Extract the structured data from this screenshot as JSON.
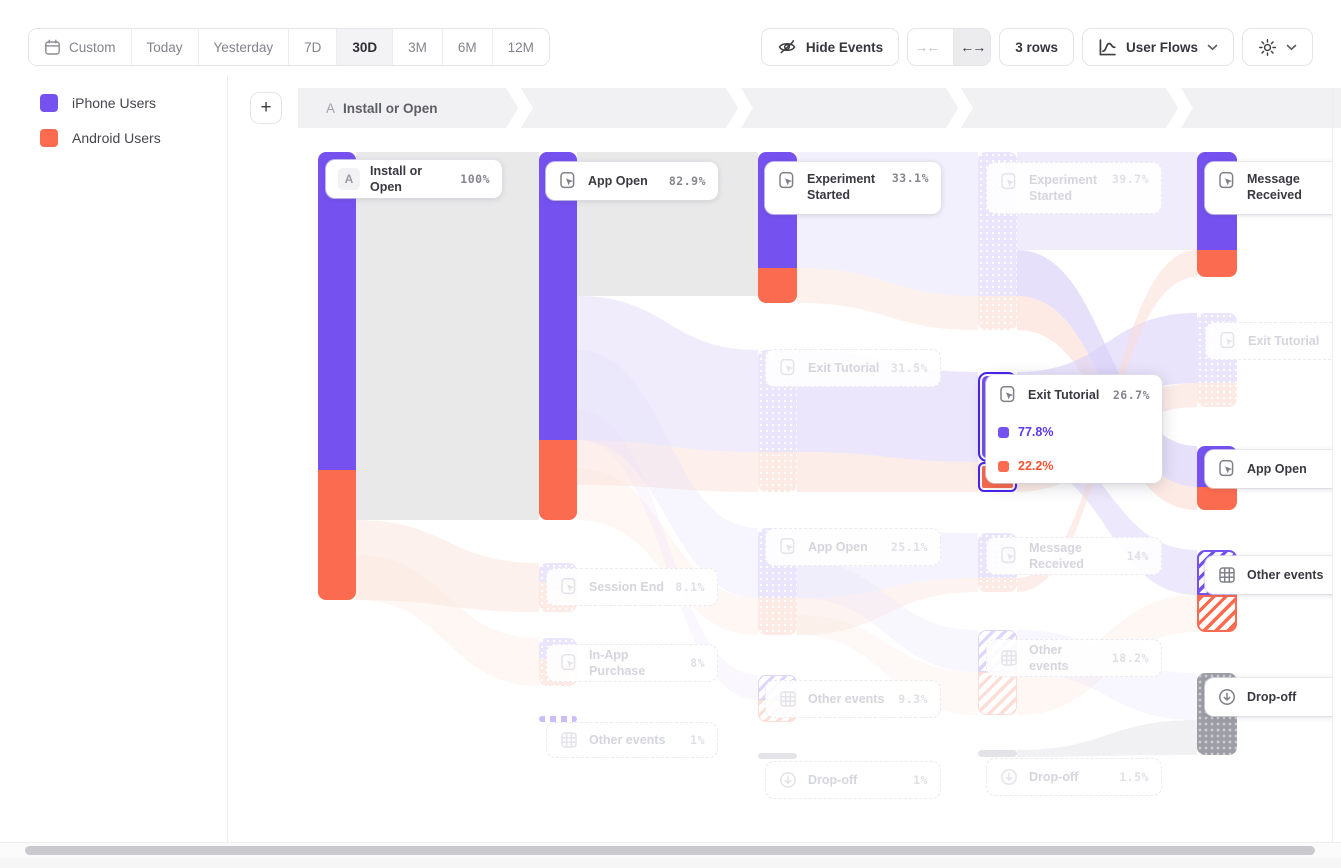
{
  "toolbar": {
    "date_buttons": [
      {
        "label": "Custom",
        "icon": "calendar",
        "selected": false
      },
      {
        "label": "Today",
        "selected": false
      },
      {
        "label": "Yesterday",
        "selected": false
      },
      {
        "label": "7D",
        "selected": false
      },
      {
        "label": "30D",
        "selected": true
      },
      {
        "label": "3M",
        "selected": false
      },
      {
        "label": "6M",
        "selected": false
      },
      {
        "label": "12M",
        "selected": false
      }
    ],
    "hide_events_label": "Hide Events",
    "rows_label": "3 rows",
    "view_selector_label": "User Flows"
  },
  "legend": {
    "items": [
      {
        "label": "iPhone Users",
        "color": "#7552f0"
      },
      {
        "label": "Android Users",
        "color": "#fb6b4f"
      }
    ]
  },
  "breadcrumb": {
    "step_letter": "A",
    "step_label": "Install or Open"
  },
  "colors": {
    "purple": "#7552f0",
    "orange": "#fb6b4f",
    "faded_purple": "#eae5fc",
    "faded_pink": "#fdeae4",
    "gray_band": "#e9e9ea",
    "dropoff_gray": "#9d9da5"
  },
  "chart_data": {
    "type": "sankey-user-flow",
    "title": "User Flows",
    "legend_series": [
      "iPhone Users",
      "Android Users"
    ],
    "columns": [
      {
        "step": 1,
        "nodes": [
          {
            "label": "Install or Open",
            "value": "100%",
            "state": "active",
            "badge": "A"
          }
        ]
      },
      {
        "step": 2,
        "nodes": [
          {
            "label": "App Open",
            "value": "82.9%",
            "state": "active",
            "icon": "event"
          },
          {
            "label": "Session End",
            "value": "8.1%",
            "state": "faded",
            "icon": "event"
          },
          {
            "label": "In-App Purchase",
            "value": "8%",
            "state": "faded",
            "icon": "event"
          },
          {
            "label": "Other events",
            "value": "1%",
            "state": "faded",
            "icon": "grid"
          }
        ]
      },
      {
        "step": 3,
        "nodes": [
          {
            "label": "Experiment Started",
            "value": "33.1%",
            "state": "active",
            "icon": "event"
          },
          {
            "label": "Exit Tutorial",
            "value": "31.5%",
            "state": "faded",
            "icon": "event"
          },
          {
            "label": "App Open",
            "value": "25.1%",
            "state": "faded",
            "icon": "event"
          },
          {
            "label": "Other events",
            "value": "9.3%",
            "state": "faded",
            "icon": "grid"
          },
          {
            "label": "Drop-off",
            "value": "1%",
            "state": "faded",
            "icon": "dropoff"
          }
        ]
      },
      {
        "step": 4,
        "nodes": [
          {
            "label": "Experiment Started",
            "value": "39.7%",
            "state": "faded",
            "icon": "event"
          },
          {
            "label": "Exit Tutorial",
            "value": "26.7%",
            "state": "hovered",
            "icon": "event",
            "breakdown": [
              {
                "series": "iPhone Users",
                "value": "77.8%",
                "color": "#7552f0"
              },
              {
                "series": "Android Users",
                "value": "22.2%",
                "color": "#fb6b4f"
              }
            ]
          },
          {
            "label": "Message Received",
            "value": "14%",
            "state": "faded",
            "icon": "event"
          },
          {
            "label": "Other events",
            "value": "18.2%",
            "state": "faded",
            "icon": "grid"
          },
          {
            "label": "Drop-off",
            "value": "1.5%",
            "state": "faded",
            "icon": "dropoff"
          }
        ]
      },
      {
        "step": 5,
        "nodes": [
          {
            "label": "Message Received",
            "value": "",
            "state": "active",
            "icon": "event"
          },
          {
            "label": "Exit Tutorial",
            "value": "",
            "state": "faded",
            "icon": "event"
          },
          {
            "label": "App Open",
            "value": "",
            "state": "active",
            "icon": "event"
          },
          {
            "label": "Other events",
            "value": "",
            "state": "active",
            "icon": "grid"
          },
          {
            "label": "Drop-off",
            "value": "",
            "state": "active",
            "icon": "dropoff"
          }
        ]
      }
    ]
  }
}
